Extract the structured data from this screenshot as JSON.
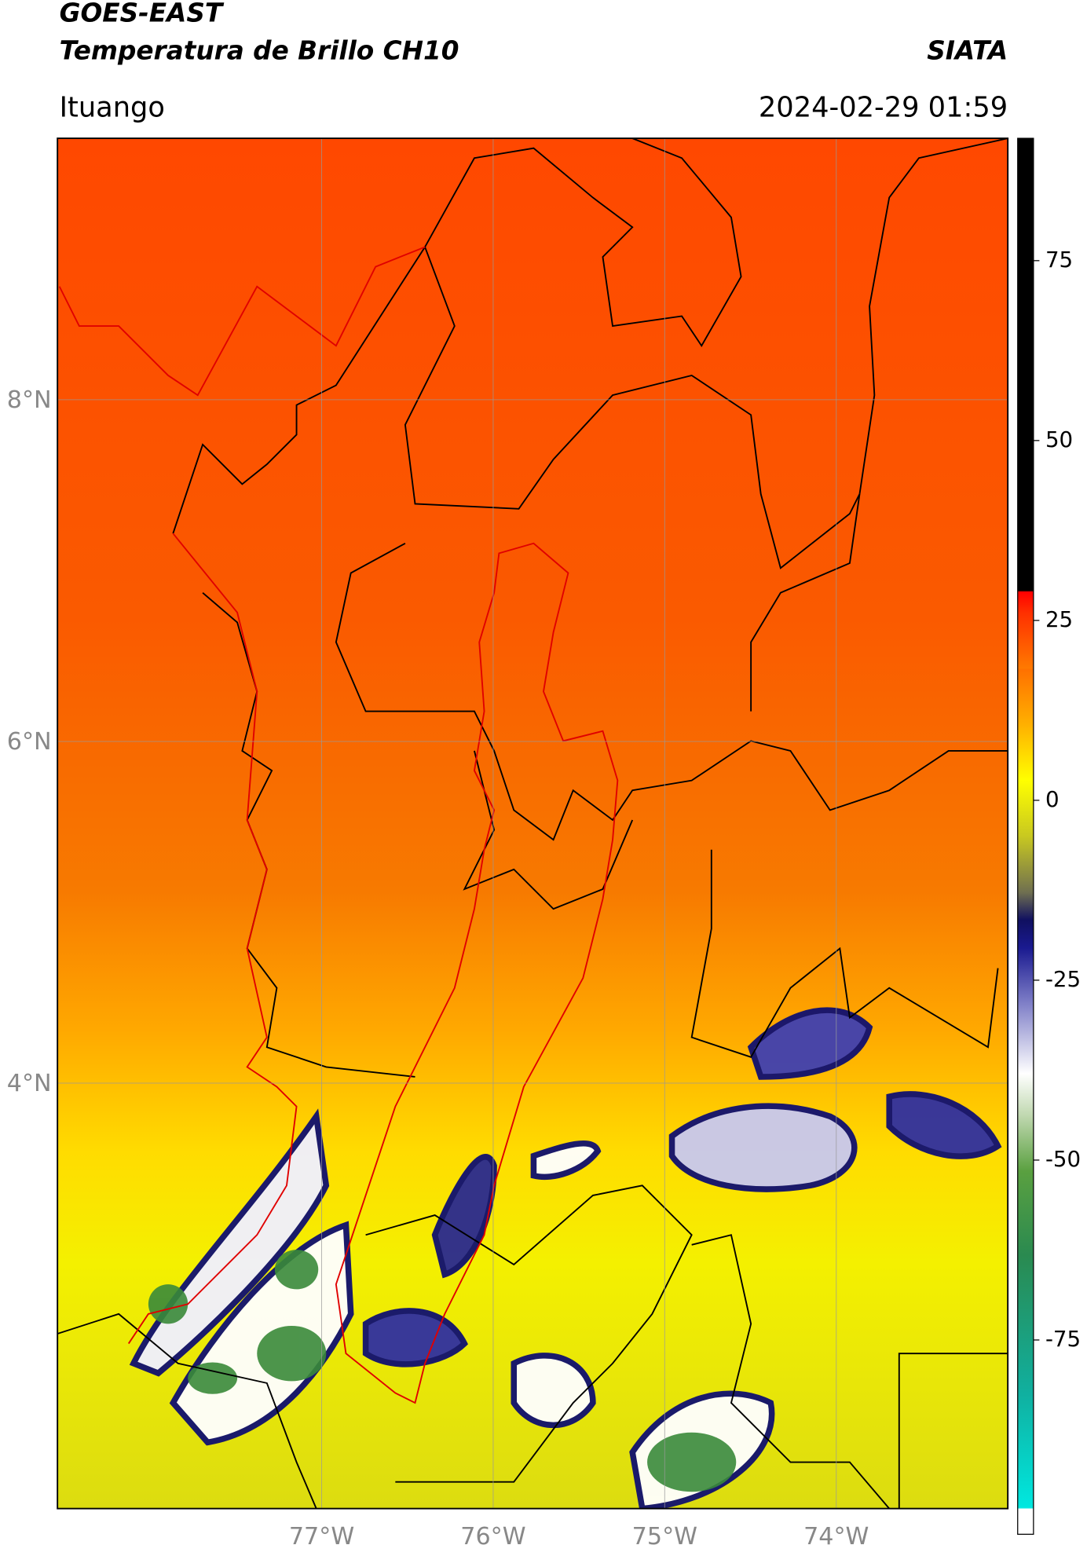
{
  "chart_data": {
    "type": "map",
    "title": "GOES-EAST",
    "subtitle": "Temperatura de Brillo CH10",
    "source": "SIATA",
    "location": "Ituango",
    "datetime": "2024-02-29 01:59",
    "xlim": [
      -78.54,
      -73.0
    ],
    "ylim": [
      1.51,
      9.53
    ],
    "xticks": [
      {
        "value": -77,
        "label": "77°W"
      },
      {
        "value": -76,
        "label": "76°W"
      },
      {
        "value": -75,
        "label": "75°W"
      },
      {
        "value": -74,
        "label": "74°W"
      }
    ],
    "yticks": [
      {
        "value": 8,
        "label": "8°N"
      },
      {
        "value": 6,
        "label": "6°N"
      },
      {
        "value": 4,
        "label": "4°N"
      }
    ],
    "grid": true,
    "colorbar": {
      "lim": [
        -102,
        92
      ],
      "ticks": [
        75,
        50,
        25,
        0,
        -25,
        -50,
        -75
      ]
    }
  }
}
